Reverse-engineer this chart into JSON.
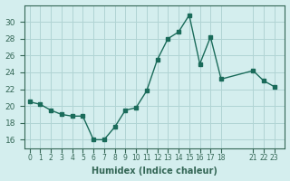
{
  "x": [
    0,
    1,
    2,
    3,
    4,
    5,
    6,
    7,
    8,
    9,
    10,
    11,
    12,
    13,
    14,
    15,
    16,
    17,
    18,
    21,
    22,
    23
  ],
  "y": [
    20.5,
    20.2,
    19.5,
    19.0,
    18.8,
    18.8,
    16.0,
    16.0,
    17.5,
    19.5,
    19.8,
    21.8,
    25.5,
    28.0,
    28.8,
    30.8,
    25.0,
    28.2,
    23.2,
    24.2,
    23.0,
    22.3
  ],
  "xlabel": "Humidex (Indice chaleur)",
  "ylim": [
    15,
    32
  ],
  "xlim": [
    -0.5,
    24
  ],
  "yticks": [
    16,
    18,
    20,
    22,
    24,
    26,
    28,
    30
  ],
  "xtick_positions": [
    0,
    1,
    2,
    3,
    4,
    5,
    6,
    7,
    8,
    9,
    10,
    11,
    12,
    13,
    14,
    15,
    16,
    17,
    18,
    21,
    22,
    23
  ],
  "xtick_labels": [
    "0",
    "1",
    "2",
    "3",
    "4",
    "5",
    "6",
    "7",
    "8",
    "9",
    "10",
    "11",
    "12",
    "13",
    "14",
    "15",
    "16",
    "17",
    "18",
    "21",
    "22",
    "23"
  ],
  "line_color": "#1a6b5a",
  "marker_color": "#1a6b5a",
  "bg_color": "#d4eeee",
  "grid_color": "#b0d4d4",
  "axis_color": "#336655"
}
